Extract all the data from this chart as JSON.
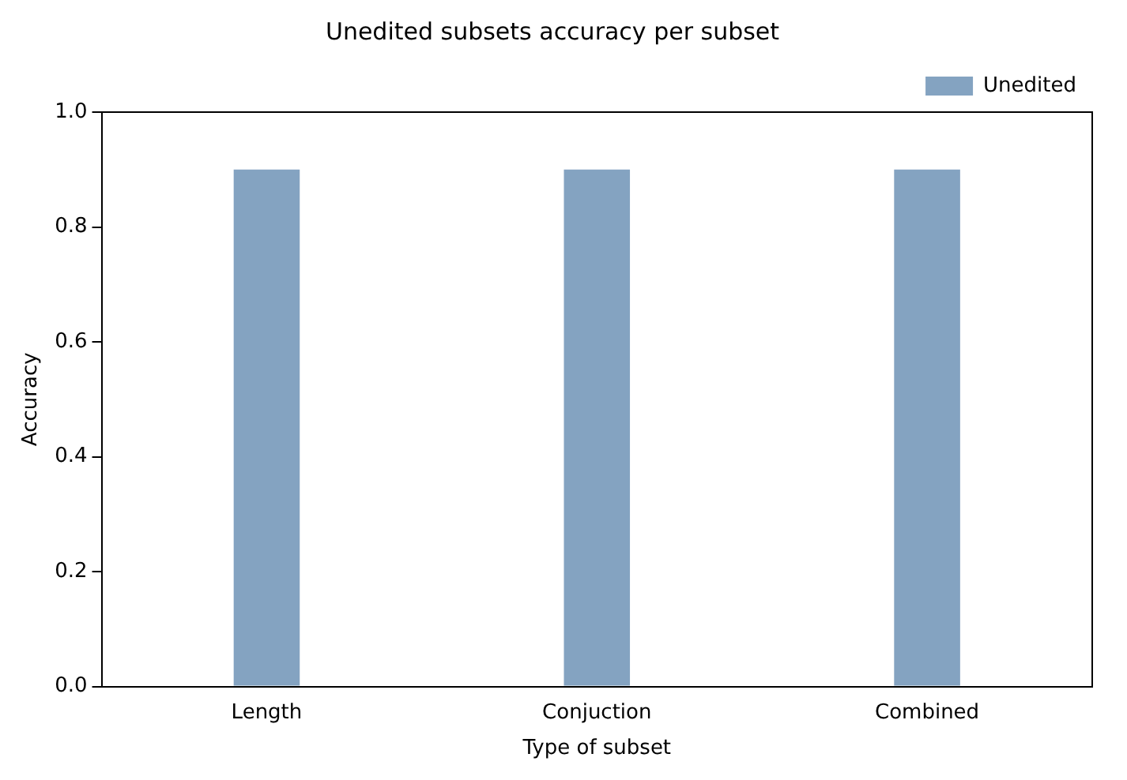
{
  "chart_data": {
    "type": "bar",
    "title": "Unedited subsets accuracy per subset",
    "xlabel": "Type of subset",
    "ylabel": "Accuracy",
    "categories": [
      "Length",
      "Conjuction",
      "Combined"
    ],
    "series": [
      {
        "name": "Unedited",
        "color": "#84a3c1",
        "values": [
          0.9,
          0.9,
          0.9
        ]
      }
    ],
    "ylim": [
      0,
      1
    ],
    "yticks": [
      {
        "value": 0,
        "label": "0.0"
      },
      {
        "value": 0.2,
        "label": "0.2"
      },
      {
        "value": 0.4,
        "label": "0.4"
      },
      {
        "value": 0.6,
        "label": "0.6"
      },
      {
        "value": 0.8,
        "label": "0.8"
      },
      {
        "value": 1,
        "label": "1.0"
      }
    ],
    "grid": false,
    "legend": "top right"
  }
}
